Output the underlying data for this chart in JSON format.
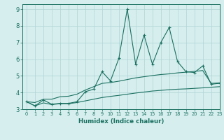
{
  "xlabel": "Humidex (Indice chaleur)",
  "bg_color": "#d6eeee",
  "line_color": "#1a7060",
  "grid_color": "#b0d4d4",
  "xlim": [
    -0.5,
    23
  ],
  "ylim": [
    3,
    9.3
  ],
  "yticks": [
    3,
    4,
    5,
    6,
    7,
    8,
    9
  ],
  "xticks": [
    0,
    1,
    2,
    3,
    4,
    5,
    6,
    7,
    8,
    9,
    10,
    11,
    12,
    13,
    14,
    15,
    16,
    17,
    18,
    19,
    20,
    21,
    22,
    23
  ],
  "x": [
    0,
    1,
    2,
    3,
    4,
    5,
    6,
    7,
    8,
    9,
    10,
    11,
    12,
    13,
    14,
    15,
    16,
    17,
    18,
    19,
    20,
    21,
    22,
    23
  ],
  "y_main": [
    3.45,
    3.2,
    3.55,
    3.3,
    3.35,
    3.35,
    3.45,
    4.05,
    4.2,
    5.25,
    4.7,
    6.05,
    9.0,
    5.7,
    7.45,
    5.7,
    7.0,
    7.9,
    5.85,
    5.25,
    5.2,
    5.6,
    4.5,
    4.55
  ],
  "y_upper": [
    3.45,
    3.4,
    3.6,
    3.6,
    3.75,
    3.78,
    3.9,
    4.15,
    4.35,
    4.55,
    4.6,
    4.68,
    4.78,
    4.88,
    4.95,
    5.02,
    5.08,
    5.12,
    5.18,
    5.22,
    5.27,
    5.32,
    4.55,
    4.58
  ],
  "y_lower": [
    3.45,
    3.2,
    3.38,
    3.28,
    3.33,
    3.33,
    3.4,
    3.5,
    3.6,
    3.7,
    3.77,
    3.83,
    3.9,
    3.97,
    4.03,
    4.09,
    4.13,
    4.17,
    4.2,
    4.22,
    4.25,
    4.28,
    4.32,
    4.35
  ]
}
